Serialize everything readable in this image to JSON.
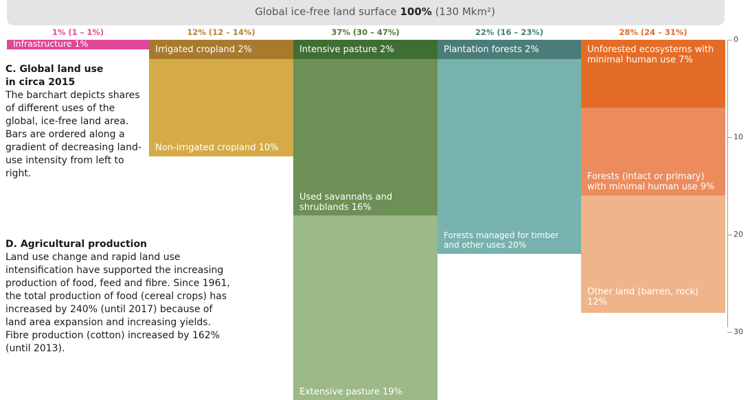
{
  "banner": {
    "prefix": "Global ice-free land surface ",
    "bold": "100%",
    "suffix": " (130 Mkm²)"
  },
  "section_c": {
    "title_line1": "C. Global land use",
    "title_line2": "in circa 2015",
    "body": "The barchart depicts shares of different uses of the global, ice-free land area. Bars are ordered along a gradient of decreasing land-use intensity from left to right."
  },
  "section_d": {
    "title": "D. Agricultural production",
    "body": "Land use change and rapid land use intensification have supported the increasing production of food, feed and fibre. Since 1961, the total production of food (cereal crops) has increased by 240% (until 2017) because of land area expansion and increasing yields. Fibre production (cotton) increased by 162% (until 2013)."
  },
  "chart_data": {
    "type": "bar",
    "title": "Global ice-free land surface 100% (130 Mkm²)",
    "y_axis": {
      "ticks": [
        0,
        10,
        20,
        30
      ],
      "range": [
        0,
        30
      ],
      "position": "right",
      "inverted": true
    },
    "groups": [
      {
        "name": "1% (1 – 1%)",
        "color": "#e0489a",
        "segments": [
          {
            "label": "Infrastructure 1%",
            "value": 1,
            "color": "#e0489a"
          }
        ]
      },
      {
        "name": "12% (12 – 14%)",
        "color": "#b5812e",
        "segments": [
          {
            "label": "Irrigated cropland 2%",
            "value": 2,
            "color": "#a87a2e"
          },
          {
            "label": "Non-irrigated cropland 10%",
            "value": 10,
            "color": "#d5ab47"
          }
        ]
      },
      {
        "name": "37% (30 – 47%)",
        "color": "#4a7a35",
        "segments": [
          {
            "label": "Intensive pasture 2%",
            "value": 2,
            "color": "#3f6e33"
          },
          {
            "label": "Used savannahs and shrublands 16%",
            "value": 16,
            "color": "#6c9055"
          },
          {
            "label": "Extensive pasture 19%",
            "value": 19,
            "color": "#9db987"
          }
        ]
      },
      {
        "name": "22% (16 – 23%)",
        "color": "#3f7e7a",
        "segments": [
          {
            "label": "Plantation forests 2%",
            "value": 2,
            "color": "#4a7c78"
          },
          {
            "label": "Forests managed for timber and other uses 20%",
            "value": 20,
            "color": "#77b2ae"
          }
        ]
      },
      {
        "name": "28% (24 – 31%)",
        "color": "#e06a25",
        "segments": [
          {
            "label": "Unforested ecosystems with minimal human use  7%",
            "value": 7,
            "color": "#e46c27"
          },
          {
            "label": "Forests (intact or primary) with minimal human use 9%",
            "value": 9,
            "color": "#ec8b5c"
          },
          {
            "label": "Other land (barren, rock) 12%",
            "value": 12,
            "color": "#efb48a"
          }
        ]
      }
    ]
  }
}
